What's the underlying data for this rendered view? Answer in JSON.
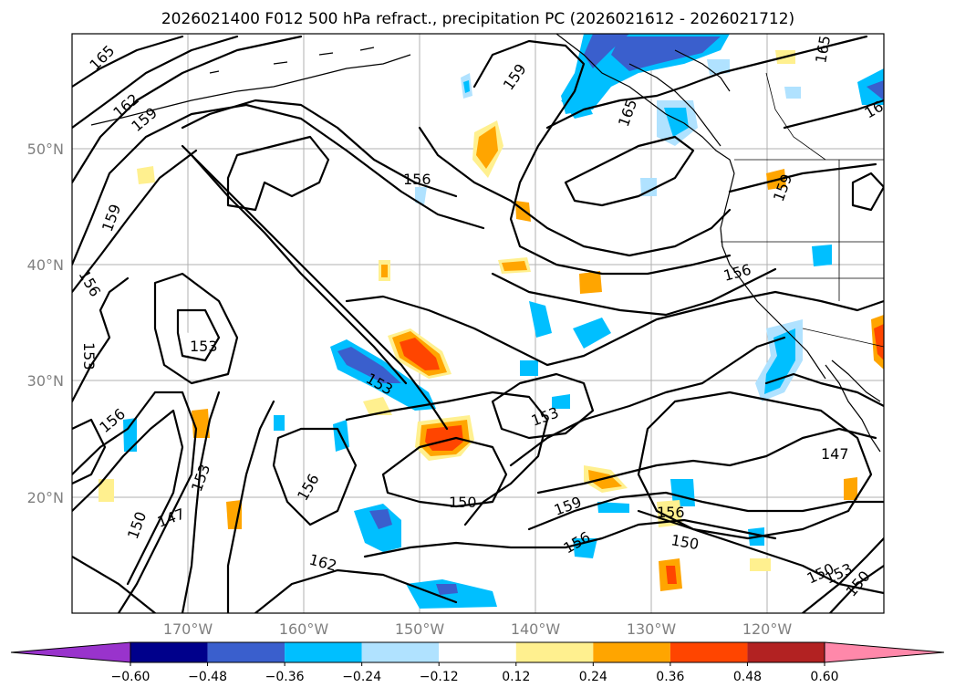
{
  "title": "2026021400 F012 500 hPa refract., precipitation PC (2026021612 - 2026021712)",
  "lat_labels": [
    "50°N",
    "40°N",
    "30°N",
    "20°N"
  ],
  "lon_labels": [
    "170°W",
    "160°W",
    "150°W",
    "140°W",
    "130°W",
    "120°W"
  ],
  "contour_labels": [
    "165",
    "162",
    "159",
    "159",
    "156",
    "153",
    "153",
    "156",
    "153",
    "150",
    "147",
    "153",
    "156",
    "150",
    "162",
    "159",
    "156",
    "156",
    "150",
    "153",
    "147",
    "150",
    "153",
    "150",
    "159",
    "156",
    "165",
    "16"
  ],
  "colorbar": {
    "ticks": [
      "−0.60",
      "−0.48",
      "−0.36",
      "−0.24",
      "−0.12",
      "0.12",
      "0.24",
      "0.36",
      "0.48",
      "0.60"
    ],
    "colors": [
      "#9933cc",
      "#00008b",
      "#3a5fcd",
      "#00bfff",
      "#b0e2ff",
      "#ffffff",
      "#fff08f",
      "#ffa500",
      "#ff4500",
      "#b22222",
      "#ff88aa"
    ]
  },
  "map_features": [
    "coastlines",
    "state-borders",
    "gridlines",
    "height-contours",
    "precipitation-pc-fill"
  ]
}
